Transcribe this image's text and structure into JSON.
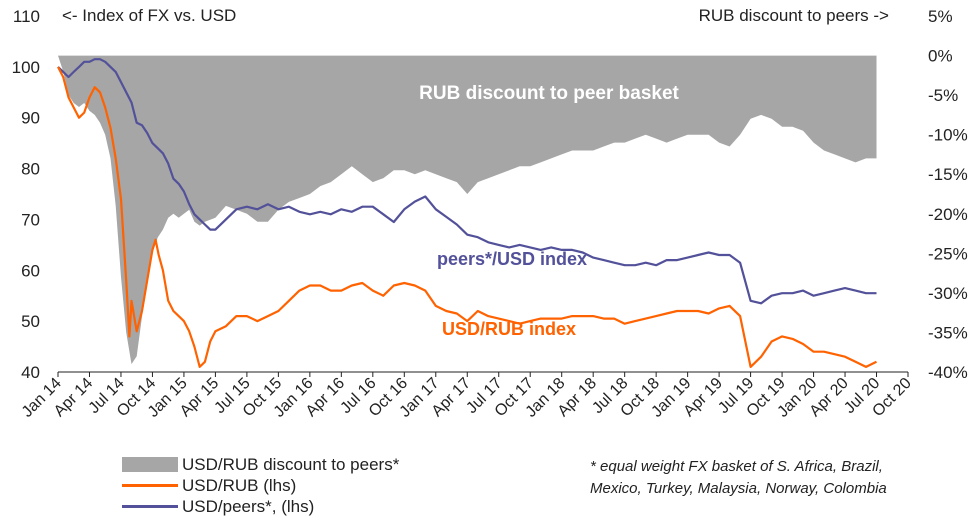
{
  "chart_data": {
    "type": "line",
    "left_axis_title": "<- Index of FX vs. USD",
    "right_axis_title": "RUB discount to peers ->",
    "y_left_ticks": [
      "110",
      "100",
      "90",
      "80",
      "70",
      "60",
      "50",
      "40"
    ],
    "y_right_ticks": [
      "5%",
      "0%",
      "-5%",
      "-10%",
      "-15%",
      "-20%",
      "-25%",
      "-30%",
      "-35%",
      "-40%"
    ],
    "ylim_left": [
      40,
      110
    ],
    "ylim_right": [
      -40,
      5
    ],
    "x_ticks": [
      "Jan 14",
      "Apr 14",
      "Jul 14",
      "Oct 14",
      "Jan 15",
      "Apr 15",
      "Jul 15",
      "Oct 15",
      "Jan 16",
      "Apr 16",
      "Jul 16",
      "Oct 16",
      "Jan 17",
      "Apr 17",
      "Jul 17",
      "Oct 17",
      "Jan 18",
      "Apr 18",
      "Jul 18",
      "Oct 18",
      "Jan 19",
      "Apr 19",
      "Jul 19",
      "Oct 19",
      "Jan 20",
      "Apr 20",
      "Jul 20",
      "Oct 20"
    ],
    "annotations": {
      "discount": "RUB discount to peer basket",
      "peers": "peers*/USD index",
      "rub": "USD/RUB index"
    },
    "series": [
      {
        "name": "USD/RUB discount to peers*",
        "axis": "right",
        "color": "#a6a6a6",
        "style": "area",
        "points": [
          [
            0,
            1
          ],
          [
            0.5,
            -2
          ],
          [
            1,
            -5
          ],
          [
            1.5,
            -6
          ],
          [
            2,
            -6.5
          ],
          [
            2.5,
            -6
          ],
          [
            3,
            -7
          ],
          [
            3.5,
            -7.5
          ],
          [
            4,
            -8.5
          ],
          [
            4.5,
            -10
          ],
          [
            5,
            -13
          ],
          [
            5.5,
            -19
          ],
          [
            6,
            -28
          ],
          [
            6.5,
            -35
          ],
          [
            7,
            -39
          ],
          [
            7.5,
            -38
          ],
          [
            8,
            -33
          ],
          [
            8.5,
            -29
          ],
          [
            9,
            -25
          ],
          [
            9.5,
            -23
          ],
          [
            10,
            -22
          ],
          [
            10.5,
            -20.5
          ],
          [
            11,
            -20
          ],
          [
            11.5,
            -20.5
          ],
          [
            12,
            -20
          ],
          [
            12.5,
            -19.5
          ],
          [
            13,
            -21
          ],
          [
            13.5,
            -21.5
          ],
          [
            14,
            -21
          ],
          [
            15,
            -20.5
          ],
          [
            16,
            -19
          ],
          [
            17,
            -19.5
          ],
          [
            18,
            -20
          ],
          [
            19,
            -21
          ],
          [
            20,
            -21
          ],
          [
            21,
            -19.5
          ],
          [
            22,
            -18.5
          ],
          [
            23,
            -18
          ],
          [
            24,
            -17.5
          ],
          [
            25,
            -16.5
          ],
          [
            26,
            -16
          ],
          [
            27,
            -15
          ],
          [
            28,
            -14
          ],
          [
            29,
            -15
          ],
          [
            30,
            -16
          ],
          [
            31,
            -15.5
          ],
          [
            32,
            -14.5
          ],
          [
            33,
            -14.5
          ],
          [
            34,
            -15
          ],
          [
            35,
            -14.5
          ],
          [
            36,
            -15
          ],
          [
            37,
            -15.5
          ],
          [
            38,
            -16
          ],
          [
            39,
            -17.5
          ],
          [
            40,
            -16
          ],
          [
            41,
            -15.5
          ],
          [
            42,
            -15
          ],
          [
            43,
            -14.5
          ],
          [
            44,
            -14
          ],
          [
            45,
            -14
          ],
          [
            46,
            -13.5
          ],
          [
            47,
            -13
          ],
          [
            48,
            -12.5
          ],
          [
            49,
            -12
          ],
          [
            50,
            -12
          ],
          [
            51,
            -12
          ],
          [
            52,
            -11.5
          ],
          [
            53,
            -11
          ],
          [
            54,
            -11
          ],
          [
            55,
            -10.5
          ],
          [
            56,
            -10
          ],
          [
            57,
            -10.5
          ],
          [
            58,
            -11
          ],
          [
            59,
            -10.5
          ],
          [
            60,
            -10
          ],
          [
            61,
            -10
          ],
          [
            62,
            -10
          ],
          [
            63,
            -11
          ],
          [
            64,
            -11.5
          ],
          [
            65,
            -10
          ],
          [
            66,
            -8
          ],
          [
            67,
            -7.5
          ],
          [
            68,
            -8
          ],
          [
            69,
            -9
          ],
          [
            70,
            -9
          ],
          [
            71,
            -9.5
          ],
          [
            72,
            -11
          ],
          [
            73,
            -12
          ],
          [
            74,
            -12.5
          ],
          [
            75,
            -13
          ],
          [
            76,
            -13.5
          ],
          [
            77,
            -13
          ],
          [
            78,
            -13
          ]
        ]
      },
      {
        "name": "USD/RUB (lhs)",
        "axis": "left",
        "color": "#ff6200",
        "style": "line",
        "points": [
          [
            0,
            100
          ],
          [
            0.5,
            98
          ],
          [
            1,
            94
          ],
          [
            1.5,
            92
          ],
          [
            2,
            90
          ],
          [
            2.5,
            91
          ],
          [
            3,
            94
          ],
          [
            3.5,
            96
          ],
          [
            4,
            95
          ],
          [
            4.5,
            92
          ],
          [
            5,
            88
          ],
          [
            5.5,
            82
          ],
          [
            6,
            74
          ],
          [
            6.5,
            58
          ],
          [
            6.8,
            47
          ],
          [
            7,
            54
          ],
          [
            7.5,
            48
          ],
          [
            8,
            52
          ],
          [
            8.5,
            58
          ],
          [
            9,
            64
          ],
          [
            9.3,
            66
          ],
          [
            9.6,
            63
          ],
          [
            10,
            60
          ],
          [
            10.5,
            54
          ],
          [
            11,
            52
          ],
          [
            11.5,
            51
          ],
          [
            12,
            50
          ],
          [
            12.5,
            48
          ],
          [
            13,
            45
          ],
          [
            13.5,
            41
          ],
          [
            14,
            42
          ],
          [
            14.5,
            46
          ],
          [
            15,
            48
          ],
          [
            16,
            49
          ],
          [
            17,
            51
          ],
          [
            18,
            51
          ],
          [
            19,
            50
          ],
          [
            20,
            51
          ],
          [
            21,
            52
          ],
          [
            22,
            54
          ],
          [
            23,
            56
          ],
          [
            24,
            57
          ],
          [
            25,
            57
          ],
          [
            26,
            56
          ],
          [
            27,
            56
          ],
          [
            28,
            57
          ],
          [
            29,
            57.5
          ],
          [
            30,
            56
          ],
          [
            31,
            55
          ],
          [
            32,
            57
          ],
          [
            33,
            57.5
          ],
          [
            34,
            57
          ],
          [
            35,
            56
          ],
          [
            36,
            53
          ],
          [
            37,
            52
          ],
          [
            38,
            51.5
          ],
          [
            39,
            50
          ],
          [
            40,
            52
          ],
          [
            41,
            51
          ],
          [
            42,
            50.5
          ],
          [
            43,
            50
          ],
          [
            44,
            49.5
          ],
          [
            45,
            50
          ],
          [
            46,
            50.5
          ],
          [
            47,
            50.5
          ],
          [
            48,
            50.5
          ],
          [
            49,
            51
          ],
          [
            50,
            51
          ],
          [
            51,
            51
          ],
          [
            52,
            50.5
          ],
          [
            53,
            50.5
          ],
          [
            54,
            49.5
          ],
          [
            55,
            50
          ],
          [
            56,
            50.5
          ],
          [
            57,
            51
          ],
          [
            58,
            51.5
          ],
          [
            59,
            52
          ],
          [
            60,
            52
          ],
          [
            61,
            52
          ],
          [
            62,
            51.5
          ],
          [
            63,
            52.5
          ],
          [
            64,
            53
          ],
          [
            65,
            51
          ],
          [
            66,
            41
          ],
          [
            67,
            43
          ],
          [
            68,
            46
          ],
          [
            69,
            47
          ],
          [
            70,
            46.5
          ],
          [
            71,
            45.5
          ],
          [
            72,
            44
          ],
          [
            73,
            44
          ],
          [
            74,
            43.5
          ],
          [
            75,
            43
          ],
          [
            76,
            42
          ],
          [
            77,
            41
          ],
          [
            78,
            42
          ]
        ]
      },
      {
        "name": "USD/peers*, (lhs)",
        "axis": "left",
        "color": "#525199",
        "style": "line",
        "points": [
          [
            0,
            100
          ],
          [
            0.5,
            99
          ],
          [
            1,
            98
          ],
          [
            1.5,
            99
          ],
          [
            2,
            100
          ],
          [
            2.5,
            101
          ],
          [
            3,
            101
          ],
          [
            3.5,
            101.5
          ],
          [
            4,
            101.5
          ],
          [
            4.5,
            101
          ],
          [
            5,
            100
          ],
          [
            5.5,
            99
          ],
          [
            6,
            97
          ],
          [
            6.5,
            95
          ],
          [
            7,
            93
          ],
          [
            7.5,
            89
          ],
          [
            8,
            88.5
          ],
          [
            8.5,
            87
          ],
          [
            9,
            85
          ],
          [
            9.5,
            84
          ],
          [
            10,
            83
          ],
          [
            10.5,
            81
          ],
          [
            11,
            78
          ],
          [
            11.5,
            77
          ],
          [
            12,
            75.5
          ],
          [
            12.5,
            73
          ],
          [
            13,
            71
          ],
          [
            13.5,
            70
          ],
          [
            14,
            69
          ],
          [
            14.5,
            68
          ],
          [
            15,
            68
          ],
          [
            16,
            70
          ],
          [
            17,
            72
          ],
          [
            18,
            72.5
          ],
          [
            19,
            72
          ],
          [
            20,
            73
          ],
          [
            21,
            72
          ],
          [
            22,
            72.5
          ],
          [
            23,
            71.5
          ],
          [
            24,
            71
          ],
          [
            25,
            71.5
          ],
          [
            26,
            71
          ],
          [
            27,
            72
          ],
          [
            28,
            71.5
          ],
          [
            29,
            72.5
          ],
          [
            30,
            72.5
          ],
          [
            31,
            71
          ],
          [
            32,
            69.5
          ],
          [
            33,
            72
          ],
          [
            34,
            73.5
          ],
          [
            35,
            74.5
          ],
          [
            36,
            72
          ],
          [
            37,
            70.5
          ],
          [
            38,
            69
          ],
          [
            39,
            67
          ],
          [
            40,
            66.5
          ],
          [
            41,
            65.5
          ],
          [
            42,
            65
          ],
          [
            43,
            64.5
          ],
          [
            44,
            65
          ],
          [
            45,
            64.5
          ],
          [
            46,
            64
          ],
          [
            47,
            64.5
          ],
          [
            48,
            64
          ],
          [
            49,
            64
          ],
          [
            50,
            63.5
          ],
          [
            51,
            62.5
          ],
          [
            52,
            62
          ],
          [
            53,
            61.5
          ],
          [
            54,
            61
          ],
          [
            55,
            61
          ],
          [
            56,
            61.5
          ],
          [
            57,
            61
          ],
          [
            58,
            62
          ],
          [
            59,
            62
          ],
          [
            60,
            62.5
          ],
          [
            61,
            63
          ],
          [
            62,
            63.5
          ],
          [
            63,
            63
          ],
          [
            64,
            63
          ],
          [
            65,
            61.5
          ],
          [
            66,
            54
          ],
          [
            67,
            53.5
          ],
          [
            68,
            55
          ],
          [
            69,
            55.5
          ],
          [
            70,
            55.5
          ],
          [
            71,
            56
          ],
          [
            72,
            55
          ],
          [
            73,
            55.5
          ],
          [
            74,
            56
          ],
          [
            75,
            56.5
          ],
          [
            76,
            56
          ],
          [
            77,
            55.5
          ],
          [
            78,
            55.5
          ]
        ]
      }
    ]
  },
  "legend": [
    {
      "label": "USD/RUB discount to peers*",
      "color": "#a6a6a6"
    },
    {
      "label": "USD/RUB (lhs)",
      "color": "#ff6200"
    },
    {
      "label": "USD/peers*, (lhs)",
      "color": "#525199"
    }
  ],
  "footnote": {
    "line1": "* equal weight  FX basket of S. Africa, Brazil,",
    "line2": "Mexico, Turkey, Malaysia, Norway, Colombia"
  }
}
